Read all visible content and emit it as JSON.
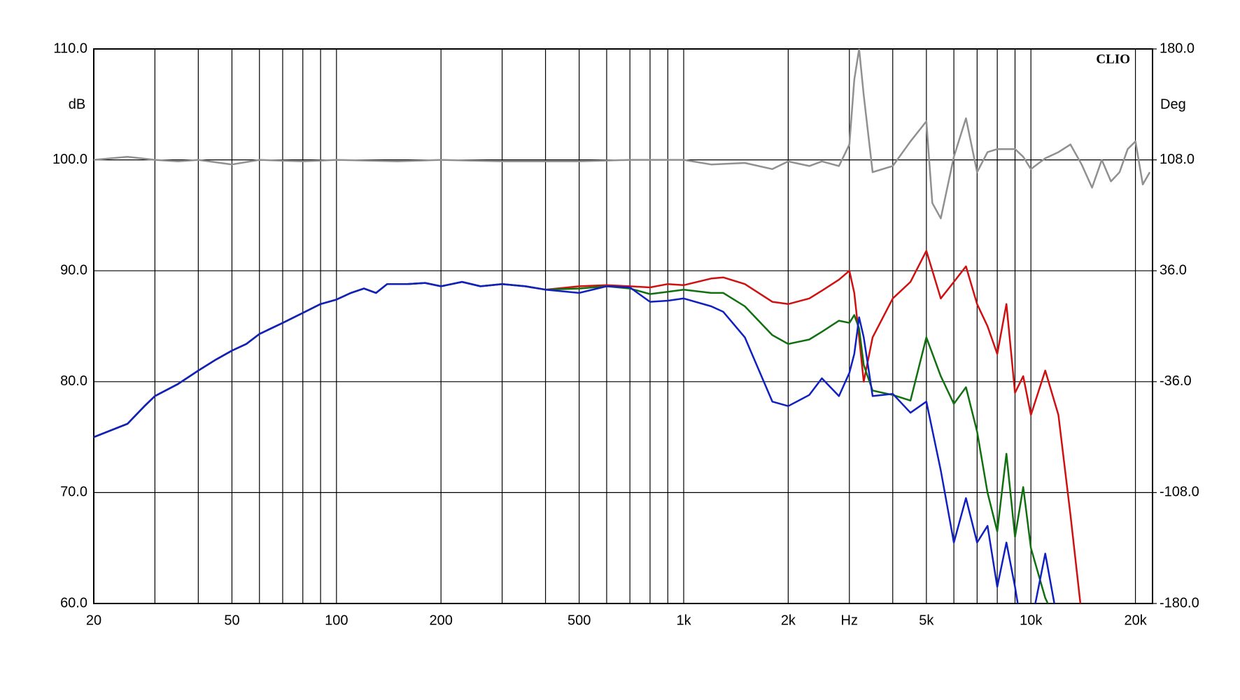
{
  "chart_data": {
    "type": "line",
    "brand": "CLIO",
    "ylabel": "dB",
    "y2label": "Deg",
    "xlim": [
      20,
      22400
    ],
    "log_x": true,
    "grid": true,
    "xticks": [
      20,
      50,
      100,
      200,
      500,
      {
        "value": 1000,
        "label": "1k"
      },
      {
        "value": 2000,
        "label": "2k"
      },
      {
        "value": 3000,
        "label": "Hz"
      },
      {
        "value": 5000,
        "label": "5k"
      },
      {
        "value": 10000,
        "label": "10k"
      },
      {
        "value": 20000,
        "label": "20k"
      }
    ],
    "xminor": [
      30,
      40,
      60,
      70,
      80,
      90,
      300,
      400,
      600,
      700,
      800,
      900,
      4000,
      6000,
      7000,
      8000,
      9000
    ],
    "ylim": [
      60,
      110
    ],
    "yticks": [
      {
        "value": 60,
        "label": "60.0"
      },
      {
        "value": 70,
        "label": "70.0"
      },
      {
        "value": 80,
        "label": "80.0"
      },
      {
        "value": 90,
        "label": "90.0"
      },
      {
        "value": 100,
        "label": "100.0"
      },
      {
        "value": 110,
        "label": "110.0"
      }
    ],
    "y2lim": [
      -180,
      180
    ],
    "y2ticks": [
      {
        "value": -180,
        "label": "-180.0"
      },
      {
        "value": -108,
        "label": "-108.0"
      },
      {
        "value": -36,
        "label": "-36.0"
      },
      {
        "value": 36,
        "label": "36.0"
      },
      {
        "value": 108,
        "label": "108.0"
      },
      {
        "value": 180,
        "label": "180.0"
      }
    ],
    "series": [
      {
        "color": "#d01010",
        "x": [
          20,
          25,
          28,
          30,
          35,
          40,
          45,
          50,
          55,
          60,
          70,
          80,
          90,
          100,
          110,
          120,
          130,
          140,
          160,
          180,
          200,
          230,
          260,
          300,
          350,
          400,
          500,
          600,
          700,
          800,
          900,
          1000,
          1200,
          1300,
          1500,
          1800,
          2000,
          2300,
          2500,
          2800,
          3000,
          3100,
          3200,
          3300,
          3500,
          4000,
          4500,
          5000,
          5500,
          6000,
          6500,
          7000,
          7500,
          8000,
          8500,
          9000,
          9500,
          10000,
          11000,
          12000,
          13000,
          14000
        ],
        "values": [
          75.0,
          76.2,
          77.8,
          78.7,
          79.8,
          81.0,
          82.0,
          82.8,
          83.4,
          84.3,
          85.3,
          86.2,
          87.0,
          87.4,
          88.0,
          88.4,
          88.0,
          88.8,
          88.8,
          88.9,
          88.6,
          89.0,
          88.6,
          88.8,
          88.6,
          88.3,
          88.6,
          88.7,
          88.6,
          88.5,
          88.8,
          88.7,
          89.3,
          89.4,
          88.8,
          87.2,
          87.0,
          87.5,
          88.2,
          89.2,
          90.0,
          88.0,
          84.0,
          80.0,
          84.0,
          87.5,
          89.0,
          91.8,
          87.5,
          89.0,
          90.4,
          87.0,
          85.0,
          82.5,
          87.0,
          79.0,
          80.5,
          77.0,
          81.0,
          77.0,
          68.0,
          59.0
        ]
      },
      {
        "color": "#107010",
        "x": [
          20,
          25,
          28,
          30,
          35,
          40,
          45,
          50,
          55,
          60,
          70,
          80,
          90,
          100,
          110,
          120,
          130,
          140,
          160,
          180,
          200,
          230,
          260,
          300,
          350,
          400,
          500,
          600,
          700,
          800,
          900,
          1000,
          1200,
          1300,
          1500,
          1800,
          2000,
          2300,
          2500,
          2800,
          3000,
          3100,
          3200,
          3300,
          3500,
          4000,
          4500,
          5000,
          5500,
          6000,
          6500,
          7000,
          7500,
          8000,
          8500,
          9000,
          9500,
          10000,
          11000,
          12000
        ],
        "values": [
          75.0,
          76.2,
          77.8,
          78.7,
          79.8,
          81.0,
          82.0,
          82.8,
          83.4,
          84.3,
          85.3,
          86.2,
          87.0,
          87.4,
          88.0,
          88.4,
          88.0,
          88.8,
          88.8,
          88.9,
          88.6,
          89.0,
          88.6,
          88.8,
          88.6,
          88.3,
          88.4,
          88.6,
          88.4,
          87.9,
          88.1,
          88.3,
          88.0,
          88.0,
          86.8,
          84.2,
          83.4,
          83.8,
          84.5,
          85.5,
          85.3,
          86.0,
          84.8,
          81.5,
          79.2,
          78.8,
          78.3,
          84.0,
          80.5,
          78.0,
          79.5,
          75.5,
          70.0,
          66.5,
          73.5,
          66.0,
          70.5,
          65.0,
          60.5,
          58.0
        ]
      },
      {
        "color": "#1020c0",
        "x": [
          20,
          25,
          28,
          30,
          35,
          40,
          45,
          50,
          55,
          60,
          70,
          80,
          90,
          100,
          110,
          120,
          130,
          140,
          160,
          180,
          200,
          230,
          260,
          300,
          350,
          400,
          500,
          600,
          700,
          800,
          900,
          1000,
          1200,
          1300,
          1500,
          1800,
          2000,
          2300,
          2500,
          2800,
          3000,
          3100,
          3200,
          3300,
          3500,
          4000,
          4500,
          5000,
          5500,
          6000,
          6500,
          7000,
          7500,
          8000,
          8500,
          9000,
          9500,
          10000,
          11000,
          12000
        ],
        "values": [
          75.0,
          76.2,
          77.8,
          78.7,
          79.8,
          81.0,
          82.0,
          82.8,
          83.4,
          84.3,
          85.3,
          86.2,
          87.0,
          87.4,
          88.0,
          88.4,
          88.0,
          88.8,
          88.8,
          88.9,
          88.6,
          89.0,
          88.6,
          88.8,
          88.6,
          88.3,
          88.0,
          88.6,
          88.5,
          87.2,
          87.3,
          87.5,
          86.8,
          86.3,
          84.0,
          78.2,
          77.8,
          78.8,
          80.3,
          78.7,
          80.8,
          82.5,
          85.8,
          84.0,
          78.7,
          78.9,
          77.2,
          78.2,
          72.0,
          65.5,
          69.5,
          65.5,
          67.0,
          61.5,
          65.5,
          61.5,
          57.0,
          58.0,
          64.5,
          58.0
        ]
      },
      {
        "color": "#909090",
        "axis": "y2",
        "x": [
          20,
          25,
          30,
          35,
          40,
          50,
          60,
          80,
          100,
          150,
          200,
          300,
          500,
          700,
          1000,
          1200,
          1500,
          1800,
          2000,
          2300,
          2500,
          2800,
          3000,
          3100,
          3200,
          3300,
          3500,
          4000,
          4500,
          5000,
          5200,
          5500,
          6000,
          6500,
          7000,
          7500,
          8000,
          9000,
          9500,
          10000,
          11000,
          12000,
          13000,
          14000,
          15000,
          16000,
          17000,
          18000,
          19000,
          20000,
          21000,
          22000
        ],
        "values": [
          108,
          110,
          108,
          107,
          108,
          105,
          108,
          107,
          108,
          107,
          108,
          107,
          107,
          108,
          108,
          105,
          106,
          102,
          107,
          104,
          107,
          104,
          118,
          160,
          180,
          150,
          100,
          104,
          120,
          133,
          80,
          70,
          110,
          135,
          100,
          113,
          115,
          115,
          110,
          102,
          109,
          113,
          118,
          105,
          90,
          108,
          94,
          100,
          115,
          120,
          92,
          100
        ]
      }
    ]
  }
}
